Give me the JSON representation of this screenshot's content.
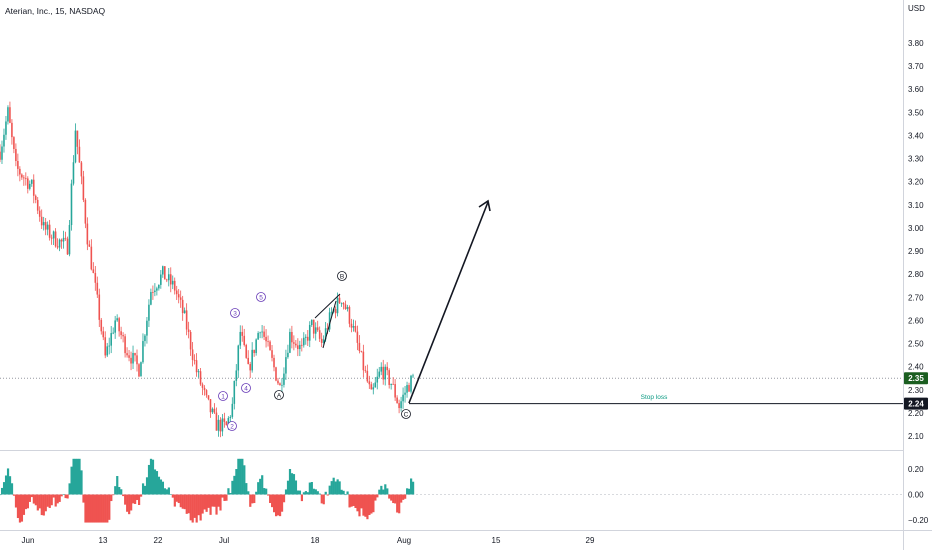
{
  "header": {
    "symbol_title": "Aterian, Inc., 15, NASDAQ"
  },
  "price_axis": {
    "currency": "USD"
  },
  "colors": {
    "up": "#26a69a",
    "down": "#ef5350",
    "text": "#131722",
    "grid": "#e0e3eb",
    "wave_motive": "#673ab7",
    "wave_corrective": "#131722",
    "stop_loss_text": "#089981",
    "current_price_bg": "#1b5e20",
    "stop_price_bg": "#131722"
  },
  "annotations": {
    "stop_loss_label": "Stop loss",
    "motive_waves": [
      "1",
      "2",
      "3",
      "4",
      "5"
    ],
    "corrective_waves": [
      "A",
      "B",
      "C"
    ]
  },
  "chart_data": [
    {
      "type": "candlestick",
      "series_name": "Price",
      "x_labels": [
        "Jun",
        "13",
        "22",
        "Jul",
        "18",
        "Aug",
        "15",
        "29"
      ],
      "y_ticks": [
        "3.80",
        "3.70",
        "3.60",
        "3.50",
        "3.40",
        "3.30",
        "3.20",
        "3.10",
        "3.00",
        "2.90",
        "2.80",
        "2.70",
        "2.60",
        "2.50",
        "2.40",
        "2.30",
        "2.20",
        "2.10"
      ],
      "ylim": [
        2.05,
        3.85
      ],
      "current_price": 2.35,
      "stop_loss_price": 2.24,
      "path_waypoints": [
        [
          0,
          3.33
        ],
        [
          4,
          3.5
        ],
        [
          8,
          3.26
        ],
        [
          16,
          3.18
        ],
        [
          22,
          3.0
        ],
        [
          28,
          2.95
        ],
        [
          34,
          2.92
        ],
        [
          38,
          3.43
        ],
        [
          44,
          2.96
        ],
        [
          49,
          2.68
        ],
        [
          53,
          2.44
        ],
        [
          58,
          2.6
        ],
        [
          64,
          2.47
        ],
        [
          70,
          2.39
        ],
        [
          76,
          2.73
        ],
        [
          82,
          2.8
        ],
        [
          88,
          2.74
        ],
        [
          93,
          2.61
        ],
        [
          99,
          2.38
        ],
        [
          104,
          2.25
        ],
        [
          109,
          2.15
        ],
        [
          114,
          2.14
        ],
        [
          117,
          2.23
        ],
        [
          121,
          2.55
        ],
        [
          125,
          2.38
        ],
        [
          131,
          2.58
        ],
        [
          136,
          2.45
        ],
        [
          141,
          2.31
        ],
        [
          146,
          2.54
        ],
        [
          152,
          2.47
        ],
        [
          157,
          2.58
        ],
        [
          162,
          2.5
        ],
        [
          167,
          2.63
        ],
        [
          172,
          2.7
        ],
        [
          177,
          2.59
        ],
        [
          182,
          2.43
        ],
        [
          187,
          2.27
        ],
        [
          192,
          2.39
        ],
        [
          197,
          2.33
        ],
        [
          201,
          2.23
        ],
        [
          205,
          2.31
        ],
        [
          208,
          2.35
        ]
      ]
    },
    {
      "type": "histogram",
      "series_name": "Oscillator",
      "y_ticks": [
        "0.20",
        "0.00",
        "−0.20"
      ],
      "ylim": [
        -0.235,
        0.33
      ]
    }
  ]
}
